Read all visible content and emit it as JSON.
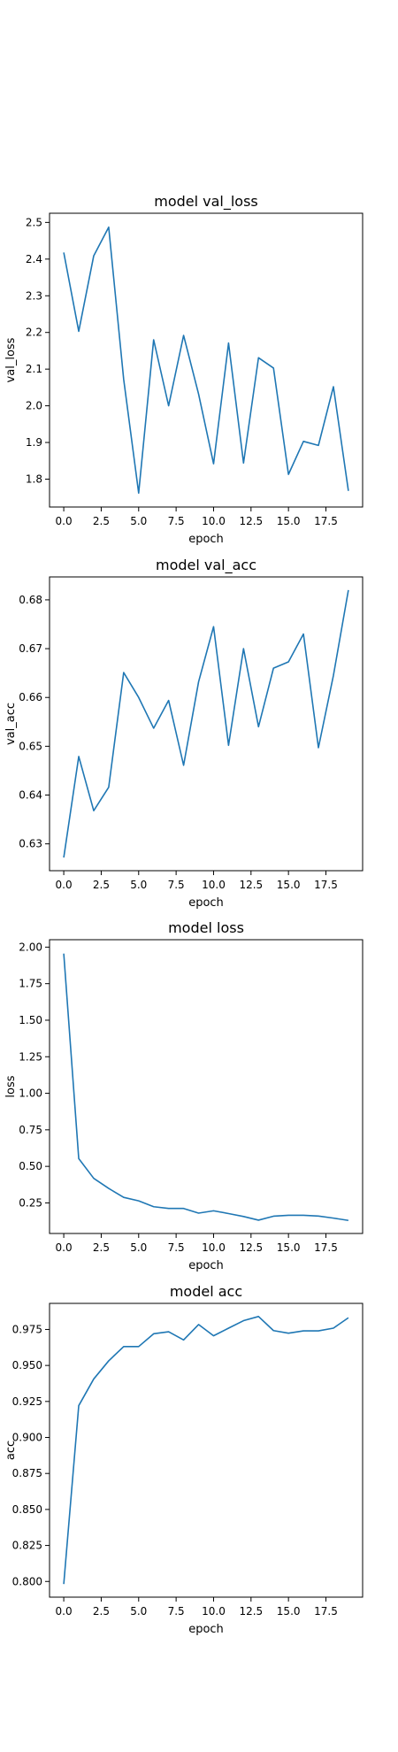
{
  "style": {
    "line_color": "#1f77b4",
    "frame_color": "#000000",
    "background": "#ffffff"
  },
  "chart_data": [
    {
      "type": "line",
      "title": "model val_loss",
      "xlabel": "epoch",
      "ylabel": "val_loss",
      "xlim": [
        -0.95,
        19.95
      ],
      "ylim": [
        1.724,
        2.525
      ],
      "xticks": [
        "0.0",
        "2.5",
        "5.0",
        "7.5",
        "10.0",
        "12.5",
        "15.0",
        "17.5"
      ],
      "yticks": [
        "1.8",
        "1.9",
        "2.0",
        "2.1",
        "2.2",
        "2.3",
        "2.4",
        "2.5"
      ],
      "grid": false,
      "x": [
        0,
        1,
        2,
        3,
        4,
        5,
        6,
        7,
        8,
        9,
        10,
        11,
        12,
        13,
        14,
        15,
        16,
        17,
        18,
        19
      ],
      "series": [
        {
          "values": [
            2.418,
            2.203,
            2.409,
            2.487,
            2.072,
            1.762,
            2.18,
            2.0,
            2.192,
            2.032,
            1.842,
            2.171,
            1.844,
            2.131,
            2.103,
            1.813,
            1.903,
            1.892,
            2.052,
            1.768
          ]
        }
      ]
    },
    {
      "type": "line",
      "title": "model val_acc",
      "xlabel": "epoch",
      "ylabel": "val_acc",
      "xlim": [
        -0.95,
        19.95
      ],
      "ylim": [
        0.6245,
        0.6847
      ],
      "xticks": [
        "0.0",
        "2.5",
        "5.0",
        "7.5",
        "10.0",
        "12.5",
        "15.0",
        "17.5"
      ],
      "yticks": [
        "0.63",
        "0.64",
        "0.65",
        "0.66",
        "0.67",
        "0.68"
      ],
      "grid": false,
      "x": [
        0,
        1,
        2,
        3,
        4,
        5,
        6,
        7,
        8,
        9,
        10,
        11,
        12,
        13,
        14,
        15,
        16,
        17,
        18,
        19
      ],
      "series": [
        {
          "values": [
            0.6272,
            0.6479,
            0.6368,
            0.6416,
            0.6651,
            0.66,
            0.6537,
            0.6594,
            0.6461,
            0.6632,
            0.6745,
            0.6502,
            0.67,
            0.654,
            0.666,
            0.6673,
            0.673,
            0.6497,
            0.6645,
            0.682
          ]
        }
      ]
    },
    {
      "type": "line",
      "title": "model loss",
      "xlabel": "epoch",
      "ylabel": "loss",
      "xlim": [
        -0.95,
        19.95
      ],
      "ylim": [
        0.0408,
        2.0507
      ],
      "xticks": [
        "0.0",
        "2.5",
        "5.0",
        "7.5",
        "10.0",
        "12.5",
        "15.0",
        "17.5"
      ],
      "yticks": [
        "0.25",
        "0.50",
        "0.75",
        "1.00",
        "1.25",
        "1.50",
        "1.75",
        "2.00"
      ],
      "grid": false,
      "x": [
        0,
        1,
        2,
        3,
        4,
        5,
        6,
        7,
        8,
        9,
        10,
        11,
        12,
        13,
        14,
        15,
        16,
        17,
        18,
        19
      ],
      "series": [
        {
          "values": [
            1.956,
            0.553,
            0.418,
            0.349,
            0.288,
            0.264,
            0.224,
            0.212,
            0.212,
            0.18,
            0.196,
            0.177,
            0.157,
            0.132,
            0.159,
            0.165,
            0.165,
            0.16,
            0.146,
            0.13
          ]
        }
      ]
    },
    {
      "type": "line",
      "title": "model acc",
      "xlabel": "epoch",
      "ylabel": "acc",
      "xlim": [
        -0.95,
        19.95
      ],
      "ylim": [
        0.7891,
        0.9931
      ],
      "xticks": [
        "0.0",
        "2.5",
        "5.0",
        "7.5",
        "10.0",
        "12.5",
        "15.0",
        "17.5"
      ],
      "yticks": [
        "0.800",
        "0.825",
        "0.850",
        "0.875",
        "0.900",
        "0.925",
        "0.950",
        "0.975"
      ],
      "grid": false,
      "x": [
        0,
        1,
        2,
        3,
        4,
        5,
        6,
        7,
        8,
        9,
        10,
        11,
        12,
        13,
        14,
        15,
        16,
        17,
        18,
        19
      ],
      "series": [
        {
          "values": [
            0.7982,
            0.9221,
            0.9406,
            0.9532,
            0.9631,
            0.9631,
            0.972,
            0.9734,
            0.9677,
            0.9784,
            0.9706,
            0.9759,
            0.9811,
            0.984,
            0.9742,
            0.9724,
            0.974,
            0.974,
            0.9759,
            0.9831
          ]
        }
      ]
    }
  ]
}
